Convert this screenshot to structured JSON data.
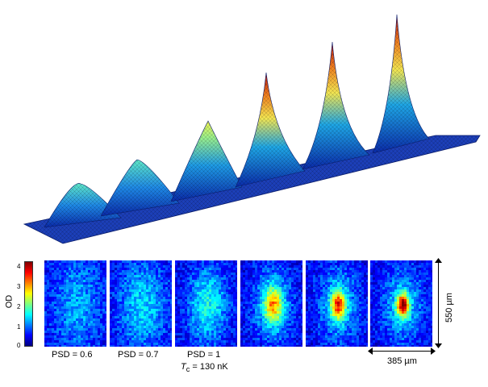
{
  "colorbar": {
    "label": "OD",
    "ticks": [
      "4",
      "3",
      "2",
      "1",
      "0"
    ],
    "colors": [
      "#00007f",
      "#0000ff",
      "#007fff",
      "#00ffff",
      "#7fff7f",
      "#ffff00",
      "#ff7f00",
      "#ff0000",
      "#7f0000"
    ]
  },
  "panels": [
    {
      "label": "PSD = 0.6",
      "peak": 1.4,
      "width": 0.62
    },
    {
      "label": "PSD = 0.7",
      "peak": 1.8,
      "width": 0.55
    },
    {
      "label": "PSD = 1",
      "sublabel_sym": "T",
      "sublabel_sub": "c",
      "sublabel_rest": " = 130 nK",
      "peak": 2.2,
      "width": 0.45
    },
    {
      "label": "",
      "peak": 3.0,
      "width": 0.28
    },
    {
      "label": "",
      "peak": 3.6,
      "width": 0.22
    },
    {
      "label": "",
      "peak": 4.2,
      "width": 0.18
    }
  ],
  "dimensions": {
    "height_label": "550 µm",
    "width_label": "385 µm"
  }
}
